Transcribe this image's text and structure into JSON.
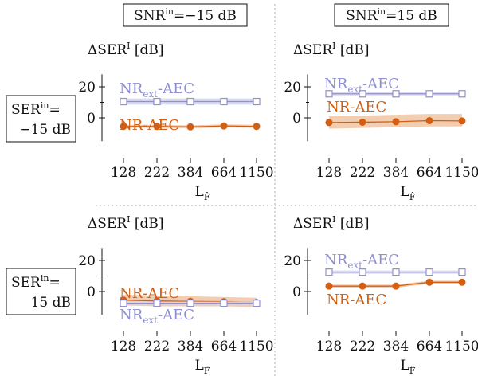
{
  "layout": {
    "col_headers": [
      {
        "main": "SNR",
        "sup": "in",
        "rest": "=−15 dB"
      },
      {
        "main": "SNR",
        "sup": "in",
        "rest": "=15 dB"
      }
    ],
    "row_headers": [
      {
        "main": "SER",
        "sup": "in",
        "rest": "=",
        "line2": "−15 dB"
      },
      {
        "main": "SER",
        "sup": "in",
        "rest": "=",
        "line2": "15 dB"
      }
    ],
    "ylabel": {
      "delta": "ΔSER",
      "sup": "I",
      "unit": " [dB]"
    },
    "xlabel": {
      "main": "L",
      "sub": "F̂"
    }
  },
  "colors": {
    "nr_aec": "#d35f12",
    "nr_aec_band": "#f2c8a6",
    "nr_ext_aec": "#8f8fd2",
    "nr_ext_aec_band": "#d5d5f0",
    "axis": "#111111",
    "divider": "#bbbbbb"
  },
  "chart_data": [
    {
      "type": "line",
      "panel": "SER=-15 dB, SNR=-15 dB",
      "x": [
        128,
        222,
        384,
        664,
        1150
      ],
      "xticks": [
        "128",
        "222",
        "384",
        "664",
        "1150"
      ],
      "yticks": [
        "20",
        "0"
      ],
      "ylim": [
        -15,
        28
      ],
      "series": [
        {
          "name": "NR-AEC",
          "label": {
            "main": "NR-AEC"
          },
          "values": [
            -5.5,
            -5.5,
            -5.8,
            -5.2,
            -5.5
          ],
          "band_low": [
            -6.5,
            -6.5,
            -6.8,
            -6.2,
            -6.5
          ],
          "band_high": [
            -4.5,
            -4.5,
            -4.8,
            -4.2,
            -4.5
          ],
          "marker": "circle"
        },
        {
          "name": "NR_ext-AEC",
          "label": {
            "main": "NR",
            "sub": "ext",
            "rest": "-AEC"
          },
          "values": [
            10.5,
            10.5,
            10.5,
            10.5,
            10.5
          ],
          "band_low": [
            8.5,
            8.5,
            8.5,
            8.5,
            8.5
          ],
          "band_high": [
            12.5,
            12.5,
            12.5,
            12.5,
            12.5
          ],
          "marker": "square"
        }
      ]
    },
    {
      "type": "line",
      "panel": "SER=-15 dB, SNR=15 dB",
      "x": [
        128,
        222,
        384,
        664,
        1150
      ],
      "xticks": [
        "128",
        "222",
        "384",
        "664",
        "1150"
      ],
      "yticks": [
        "20",
        "0"
      ],
      "ylim": [
        -15,
        28
      ],
      "series": [
        {
          "name": "NR_ext-AEC",
          "label": {
            "main": "NR",
            "sub": "ext",
            "rest": "-AEC"
          },
          "values": [
            15.5,
            15.5,
            15.5,
            15.5,
            15.5
          ],
          "band_low": [
            14.5,
            14.5,
            14.5,
            14.5,
            14.5
          ],
          "band_high": [
            16.5,
            16.5,
            16.5,
            16.5,
            16.5
          ],
          "marker": "square"
        },
        {
          "name": "NR-AEC",
          "label": {
            "main": "NR-AEC"
          },
          "values": [
            -3,
            -2.8,
            -2.5,
            -1.8,
            -2
          ],
          "band_low": [
            -7,
            -6.5,
            -6,
            -5.5,
            -5.5
          ],
          "band_high": [
            1,
            1.5,
            2,
            2.5,
            2.5
          ],
          "marker": "circle"
        }
      ]
    },
    {
      "type": "line",
      "panel": "SER=15 dB, SNR=-15 dB",
      "x": [
        128,
        222,
        384,
        664,
        1150
      ],
      "xticks": [
        "128",
        "222",
        "384",
        "664",
        "1150"
      ],
      "yticks": [
        "20",
        "0"
      ],
      "ylim": [
        -15,
        28
      ],
      "series": [
        {
          "name": "NR-AEC",
          "label": {
            "main": "NR-AEC"
          },
          "values": [
            -5.5,
            -6,
            -6.3,
            -6.5,
            -7
          ],
          "band_low": [
            -9,
            -9.5,
            -9.5,
            -9.5,
            -10
          ],
          "band_high": [
            -2,
            -2.5,
            -3,
            -3.5,
            -4
          ],
          "marker": "circle"
        },
        {
          "name": "NR_ext-AEC",
          "label": {
            "main": "NR",
            "sub": "ext",
            "rest": "-AEC"
          },
          "values": [
            -7.5,
            -7.5,
            -7.5,
            -7.5,
            -7.5
          ],
          "band_low": [
            -8.5,
            -8.5,
            -8.5,
            -8.5,
            -8.5
          ],
          "band_high": [
            -6.5,
            -6.5,
            -6.5,
            -6.5,
            -6.5
          ],
          "marker": "square"
        }
      ]
    },
    {
      "type": "line",
      "panel": "SER=15 dB, SNR=15 dB",
      "x": [
        128,
        222,
        384,
        664,
        1150
      ],
      "xticks": [
        "128",
        "222",
        "384",
        "664",
        "1150"
      ],
      "yticks": [
        "20",
        "0"
      ],
      "ylim": [
        -15,
        28
      ],
      "series": [
        {
          "name": "NR_ext-AEC",
          "label": {
            "main": "NR",
            "sub": "ext",
            "rest": "-AEC"
          },
          "values": [
            12.5,
            12.5,
            12.5,
            12.5,
            12.5
          ],
          "band_low": [
            11.5,
            11.5,
            11.5,
            11.5,
            11.5
          ],
          "band_high": [
            13.5,
            13.5,
            13.5,
            13.5,
            13.5
          ],
          "marker": "square"
        },
        {
          "name": "NR-AEC",
          "label": {
            "main": "NR-AEC"
          },
          "values": [
            3.5,
            3.5,
            3.5,
            6,
            6
          ],
          "band_low": [
            2.5,
            2.5,
            2.5,
            5,
            5
          ],
          "band_high": [
            4.5,
            4.5,
            4.5,
            7,
            7
          ],
          "marker": "circle"
        }
      ]
    }
  ]
}
